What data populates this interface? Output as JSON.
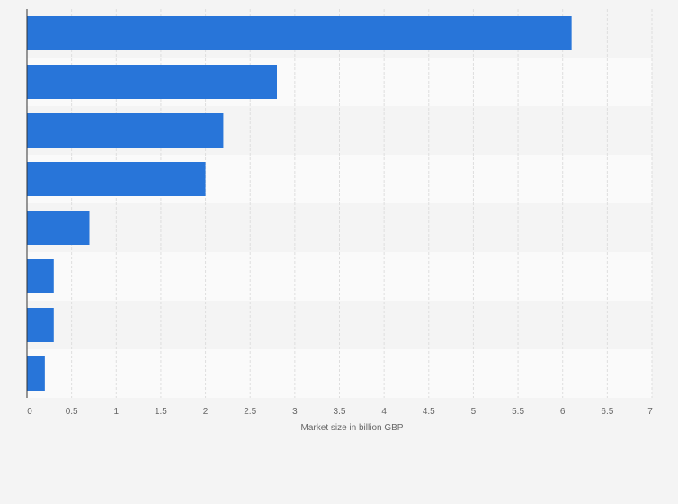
{
  "chart_data": {
    "type": "bar",
    "orientation": "horizontal",
    "title": "",
    "xlabel": "Market size in billion GBP",
    "ylabel": "",
    "xlim": [
      0,
      7
    ],
    "x_ticks": [
      "0",
      "0.5",
      "1",
      "1.5",
      "2",
      "2.5",
      "3",
      "3.5",
      "4",
      "4.5",
      "5",
      "5.5",
      "6",
      "6.5",
      "7"
    ],
    "categories": [
      "",
      "",
      "",
      "",
      "",
      "",
      "",
      ""
    ],
    "values": [
      6.1,
      2.8,
      2.2,
      2.0,
      0.7,
      0.3,
      0.3,
      0.2
    ],
    "bar_color": "#2875d9",
    "grid": true
  }
}
